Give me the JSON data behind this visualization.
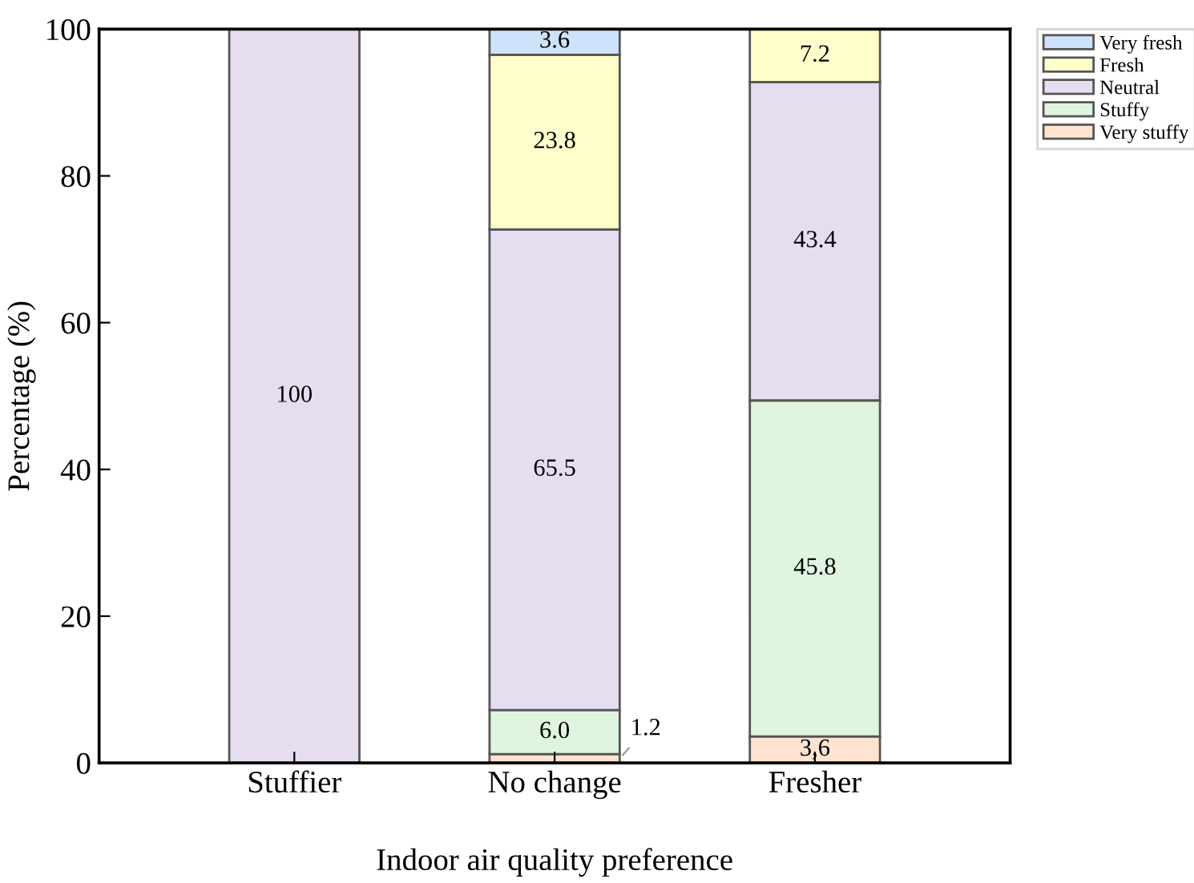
{
  "chart_data": {
    "type": "bar",
    "stacked": true,
    "xlabel": "Indoor air quality preference",
    "ylabel": "Percentage (%)",
    "categories": [
      "Stuffier",
      "No change",
      "Fresher"
    ],
    "series": [
      {
        "name": "Very stuffy",
        "color": "#fde3d0",
        "values": [
          null,
          1.2,
          3.6
        ],
        "value_labels": [
          null,
          "1.2",
          "3,6"
        ]
      },
      {
        "name": "Stuffy",
        "color": "#dff5df",
        "values": [
          null,
          6.0,
          45.8
        ],
        "value_labels": [
          null,
          "6.0",
          "45.8"
        ]
      },
      {
        "name": "Neutral",
        "color": "#e6ddf0",
        "values": [
          100,
          65.5,
          43.4
        ],
        "value_labels": [
          "100",
          "65.5",
          "43.4"
        ]
      },
      {
        "name": "Fresh",
        "color": "#ffffcc",
        "values": [
          null,
          23.8,
          7.2
        ],
        "value_labels": [
          null,
          "23.8",
          "7.2"
        ]
      },
      {
        "name": "Very fresh",
        "color": "#cfe2fb",
        "values": [
          null,
          3.6,
          null
        ],
        "value_labels": [
          null,
          "3.6",
          null
        ]
      }
    ],
    "ylim": [
      0,
      100
    ],
    "yticks": [
      0,
      20,
      40,
      60,
      80,
      100
    ],
    "grid": false,
    "legend": "top right"
  }
}
